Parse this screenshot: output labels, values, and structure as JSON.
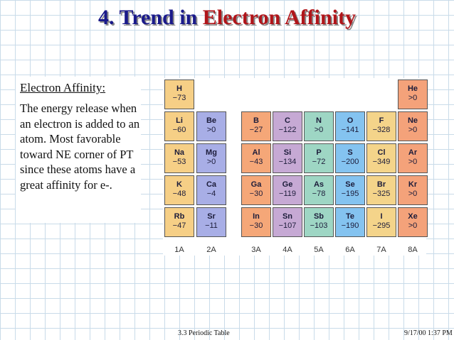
{
  "title": {
    "prefix": "4. Trend in ",
    "accent": "Electron Affinity"
  },
  "text": {
    "heading": "Electron Affinity:",
    "body": "The energy release when an electron is added to an atom. Most favorable toward NE corner of PT since these atoms have a great affinity for e-."
  },
  "colors": {
    "group1": "#f6cf86",
    "group2": "#a8aee6",
    "group3": "#f5a778",
    "group4": "#c6a9d4",
    "group5": "#9ed6c4",
    "group6": "#84c3f0",
    "group7": "#f4d48a",
    "group8": "#f4a27a"
  },
  "table": {
    "cells": [
      {
        "sym": "H",
        "val": "−73"
      },
      {
        "sym": "He",
        "val": ">0"
      },
      {
        "sym": "Li",
        "val": "−60"
      },
      {
        "sym": "Be",
        "val": ">0"
      },
      {
        "sym": "B",
        "val": "−27"
      },
      {
        "sym": "C",
        "val": "−122"
      },
      {
        "sym": "N",
        "val": ">0"
      },
      {
        "sym": "O",
        "val": "−141"
      },
      {
        "sym": "F",
        "val": "−328"
      },
      {
        "sym": "Ne",
        "val": ">0"
      },
      {
        "sym": "Na",
        "val": "−53"
      },
      {
        "sym": "Mg",
        "val": ">0"
      },
      {
        "sym": "Al",
        "val": "−43"
      },
      {
        "sym": "Si",
        "val": "−134"
      },
      {
        "sym": "P",
        "val": "−72"
      },
      {
        "sym": "S",
        "val": "−200"
      },
      {
        "sym": "Cl",
        "val": "−349"
      },
      {
        "sym": "Ar",
        "val": ">0"
      },
      {
        "sym": "K",
        "val": "−48"
      },
      {
        "sym": "Ca",
        "val": "−4"
      },
      {
        "sym": "Ga",
        "val": "−30"
      },
      {
        "sym": "Ge",
        "val": "−119"
      },
      {
        "sym": "As",
        "val": "−78"
      },
      {
        "sym": "Se",
        "val": "−195"
      },
      {
        "sym": "Br",
        "val": "−325"
      },
      {
        "sym": "Kr",
        "val": ">0"
      },
      {
        "sym": "Rb",
        "val": "−47"
      },
      {
        "sym": "Sr",
        "val": "−11"
      },
      {
        "sym": "In",
        "val": "−30"
      },
      {
        "sym": "Sn",
        "val": "−107"
      },
      {
        "sym": "Sb",
        "val": "−103"
      },
      {
        "sym": "Te",
        "val": "−190"
      },
      {
        "sym": "I",
        "val": "−295"
      },
      {
        "sym": "Xe",
        "val": ">0"
      }
    ],
    "groups": [
      "1A",
      "2A",
      "3A",
      "4A",
      "5A",
      "6A",
      "7A",
      "8A"
    ]
  },
  "footer": {
    "center": "3.3  Periodic Table",
    "right": "9/17/00 1:37 PM"
  }
}
